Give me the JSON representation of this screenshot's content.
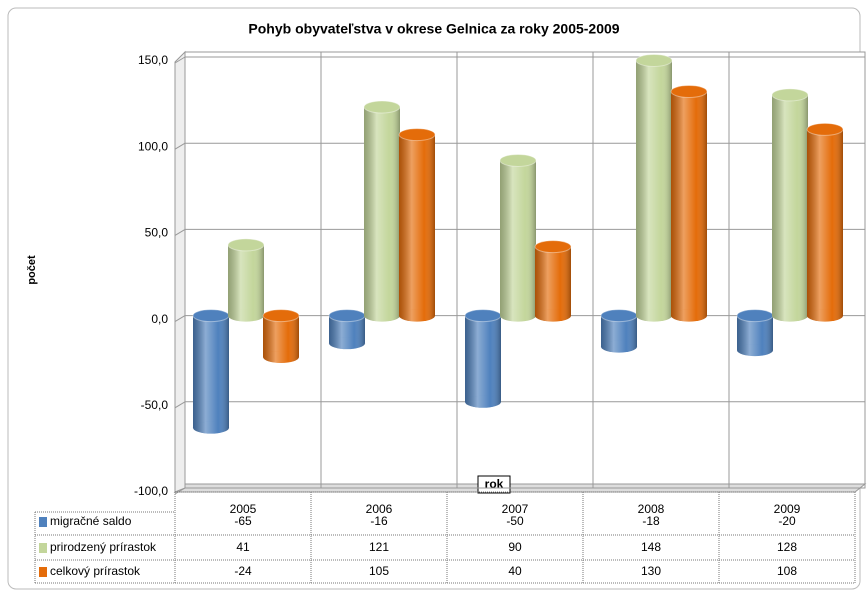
{
  "chart_data": {
    "type": "bar3d",
    "title": "Pohyb obyvateľstva v okrese Gelnica za roky 2005-2009",
    "y_label": "počet",
    "x_label": "rok",
    "categories": [
      "2005",
      "2006",
      "2007",
      "2008",
      "2009"
    ],
    "series": [
      {
        "name": "migračné saldo",
        "color": "#4f81bd",
        "values": [
          -65,
          -16,
          -50,
          -18,
          -20
        ]
      },
      {
        "name": "prirodzený prírastok",
        "color": "#c3d69b",
        "values": [
          41,
          121,
          90,
          148,
          128
        ]
      },
      {
        "name": "celkový prírastok",
        "color": "#e46c0a",
        "values": [
          -24,
          105,
          40,
          130,
          108
        ]
      }
    ],
    "ylim": [
      -100,
      150
    ],
    "yticks": [
      {
        "value": -100,
        "label": "-100,0"
      },
      {
        "value": -50,
        "label": "-50,0"
      },
      {
        "value": 0,
        "label": "0,0"
      },
      {
        "value": 50,
        "label": "50,0"
      },
      {
        "value": 100,
        "label": "100,0"
      },
      {
        "value": 150,
        "label": "150,0"
      }
    ],
    "grid": true
  }
}
